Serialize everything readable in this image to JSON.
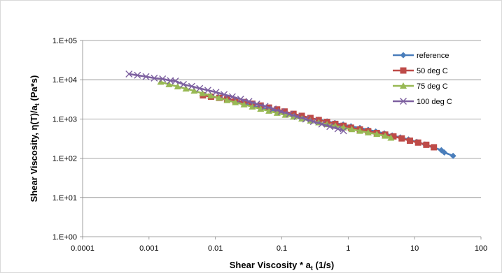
{
  "chart_data": {
    "type": "line",
    "xlabel_main": "Shear Viscosity * a",
    "xlabel_sub": "t",
    "xlabel_tail": " (1/s)",
    "ylabel_main": "Shear Viscosity, η(T)/a",
    "ylabel_sub": "t",
    "ylabel_tail": " (Pa*s)",
    "x_scale": "log",
    "y_scale": "log",
    "xlim": [
      0.0001,
      100
    ],
    "ylim": [
      1,
      100000
    ],
    "x_ticks": [
      {
        "value": 0.0001,
        "label": "0.0001"
      },
      {
        "value": 0.001,
        "label": "0.001"
      },
      {
        "value": 0.01,
        "label": "0.01"
      },
      {
        "value": 0.1,
        "label": "0.1"
      },
      {
        "value": 1,
        "label": "1"
      },
      {
        "value": 10,
        "label": "10"
      },
      {
        "value": 100,
        "label": "100"
      }
    ],
    "y_ticks": [
      {
        "value": 1,
        "label": "1.E+00"
      },
      {
        "value": 10,
        "label": "1.E+01"
      },
      {
        "value": 100,
        "label": "1.E+02"
      },
      {
        "value": 1000,
        "label": "1.E+03"
      },
      {
        "value": 10000,
        "label": "1.E+04"
      },
      {
        "value": 100000,
        "label": "1.E+05"
      }
    ],
    "grid": "horizontal major",
    "legend_position": "top-right",
    "series": [
      {
        "name": "reference",
        "color": "#4a7ebb",
        "marker": "diamond",
        "points": [
          [
            0.016,
            3100
          ],
          [
            0.021,
            2700
          ],
          [
            0.028,
            2400
          ],
          [
            0.037,
            2150
          ],
          [
            0.049,
            1900
          ],
          [
            0.065,
            1700
          ],
          [
            0.086,
            1550
          ],
          [
            0.115,
            1400
          ],
          [
            0.15,
            1280
          ],
          [
            0.2,
            1160
          ],
          [
            0.27,
            1060
          ],
          [
            0.36,
            960
          ],
          [
            0.48,
            870
          ],
          [
            0.63,
            790
          ],
          [
            0.84,
            720
          ],
          [
            1.1,
            650
          ],
          [
            1.5,
            590
          ],
          [
            2.0,
            530
          ],
          [
            2.6,
            480
          ],
          [
            3.5,
            430
          ],
          [
            4.6,
            380
          ],
          [
            6.1,
            340
          ],
          [
            8.1,
            300
          ],
          [
            10.8,
            262
          ],
          [
            14.3,
            224
          ],
          [
            19,
            190
          ],
          [
            25.3,
            160
          ],
          [
            28,
            140
          ],
          [
            38,
            115
          ]
        ]
      },
      {
        "name": "50 deg C",
        "color": "#be4b48",
        "marker": "square",
        "points": [
          [
            0.0065,
            4000
          ],
          [
            0.0086,
            3700
          ],
          [
            0.0115,
            3450
          ],
          [
            0.015,
            3200
          ],
          [
            0.02,
            2950
          ],
          [
            0.027,
            2700
          ],
          [
            0.036,
            2450
          ],
          [
            0.048,
            2200
          ],
          [
            0.064,
            1950
          ],
          [
            0.085,
            1750
          ],
          [
            0.11,
            1550
          ],
          [
            0.15,
            1350
          ],
          [
            0.2,
            1200
          ],
          [
            0.27,
            1060
          ],
          [
            0.36,
            940
          ],
          [
            0.48,
            840
          ],
          [
            0.64,
            750
          ],
          [
            0.85,
            670
          ],
          [
            1.1,
            600
          ],
          [
            1.5,
            540
          ],
          [
            2.0,
            490
          ],
          [
            2.7,
            440
          ],
          [
            3.6,
            400
          ],
          [
            4.8,
            360
          ],
          [
            6.4,
            320
          ],
          [
            8.5,
            280
          ],
          [
            11.3,
            250
          ],
          [
            15.0,
            220
          ],
          [
            19.5,
            190
          ]
        ]
      },
      {
        "name": "75 deg C",
        "color": "#98b954",
        "marker": "triangle",
        "points": [
          [
            0.0015,
            8800
          ],
          [
            0.002,
            7600
          ],
          [
            0.0027,
            6700
          ],
          [
            0.0036,
            5900
          ],
          [
            0.0048,
            5200
          ],
          [
            0.0064,
            4500
          ],
          [
            0.0085,
            3950
          ],
          [
            0.0113,
            3450
          ],
          [
            0.015,
            3000
          ],
          [
            0.02,
            2650
          ],
          [
            0.027,
            2330
          ],
          [
            0.036,
            2050
          ],
          [
            0.048,
            1800
          ],
          [
            0.064,
            1600
          ],
          [
            0.085,
            1420
          ],
          [
            0.113,
            1270
          ],
          [
            0.15,
            1130
          ],
          [
            0.2,
            1010
          ],
          [
            0.27,
            900
          ],
          [
            0.36,
            810
          ],
          [
            0.48,
            730
          ],
          [
            0.64,
            660
          ],
          [
            0.85,
            600
          ],
          [
            1.13,
            545
          ],
          [
            1.5,
            495
          ],
          [
            2.0,
            450
          ],
          [
            2.7,
            410
          ],
          [
            3.6,
            370
          ],
          [
            4.4,
            330
          ]
        ]
      },
      {
        "name": "100 deg C",
        "color": "#7d60a0",
        "marker": "x",
        "points": [
          [
            0.0005,
            14000
          ],
          [
            0.00067,
            13000
          ],
          [
            0.0009,
            12000
          ],
          [
            0.0012,
            11000
          ],
          [
            0.0016,
            10500
          ],
          [
            0.0021,
            9500
          ],
          [
            0.0025,
            9300
          ],
          [
            0.0033,
            7600
          ],
          [
            0.0044,
            6800
          ],
          [
            0.0058,
            6000
          ],
          [
            0.0077,
            5400
          ],
          [
            0.0102,
            4800
          ],
          [
            0.0135,
            4200
          ],
          [
            0.018,
            3700
          ],
          [
            0.024,
            3200
          ],
          [
            0.032,
            2800
          ],
          [
            0.042,
            2400
          ],
          [
            0.056,
            2100
          ],
          [
            0.074,
            1800
          ],
          [
            0.098,
            1550
          ],
          [
            0.13,
            1330
          ],
          [
            0.17,
            1150
          ],
          [
            0.23,
            990
          ],
          [
            0.3,
            860
          ],
          [
            0.4,
            740
          ],
          [
            0.53,
            640
          ],
          [
            0.7,
            560
          ],
          [
            0.85,
            500
          ]
        ]
      }
    ]
  }
}
